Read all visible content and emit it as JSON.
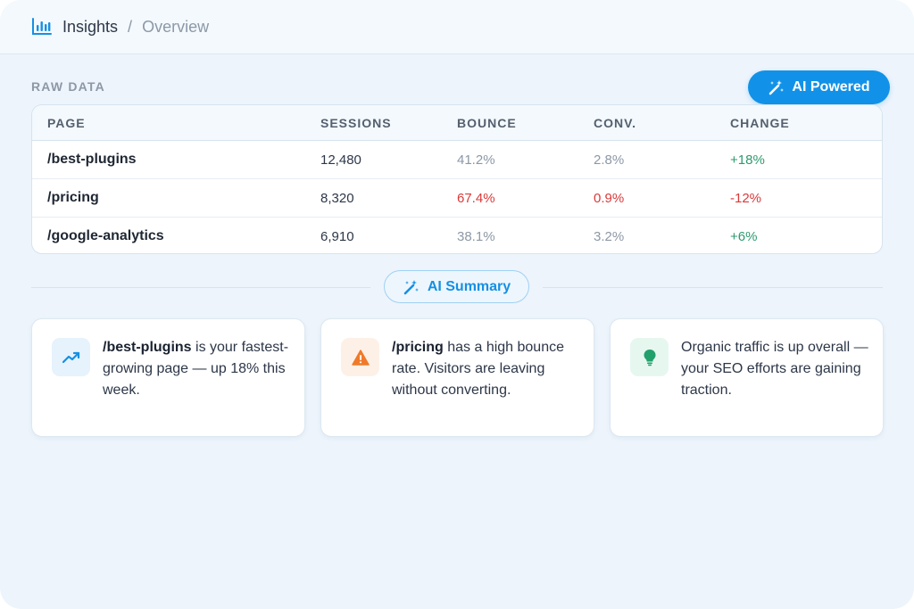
{
  "breadcrumb": {
    "section": "Insights",
    "separator": "/",
    "current": "Overview"
  },
  "raw_data": {
    "label": "RAW DATA",
    "ai_badge": "AI Powered",
    "columns": [
      "PAGE",
      "SESSIONS",
      "BOUNCE",
      "CONV.",
      "CHANGE"
    ],
    "rows": [
      {
        "page": "/best-plugins",
        "sessions": "12,480",
        "bounce": "41.2%",
        "conv": "2.8%",
        "change": "+18%"
      },
      {
        "page": "/pricing",
        "sessions": "8,320",
        "bounce": "67.4%",
        "conv": "0.9%",
        "change": "-12%"
      },
      {
        "page": "/google-analytics",
        "sessions": "6,910",
        "bounce": "38.1%",
        "conv": "3.2%",
        "change": "+6%"
      }
    ]
  },
  "summary": {
    "label": "AI Summary",
    "cards": [
      {
        "icon": "trending-up-icon",
        "strong": "/best-plugins",
        "text": " is your fastest-growing page — up 18% this week."
      },
      {
        "icon": "warning-icon",
        "strong": "/pricing",
        "text": " has a high bounce rate. Visitors are leaving without converting."
      },
      {
        "icon": "lightbulb-icon",
        "strong": "",
        "text": "Organic traffic is up overall — your SEO efforts are gaining traction."
      }
    ]
  },
  "colors": {
    "accent": "#1192e8",
    "positive": "#2d9a6e",
    "negative": "#d93a3a",
    "warning": "#f07a2a"
  }
}
